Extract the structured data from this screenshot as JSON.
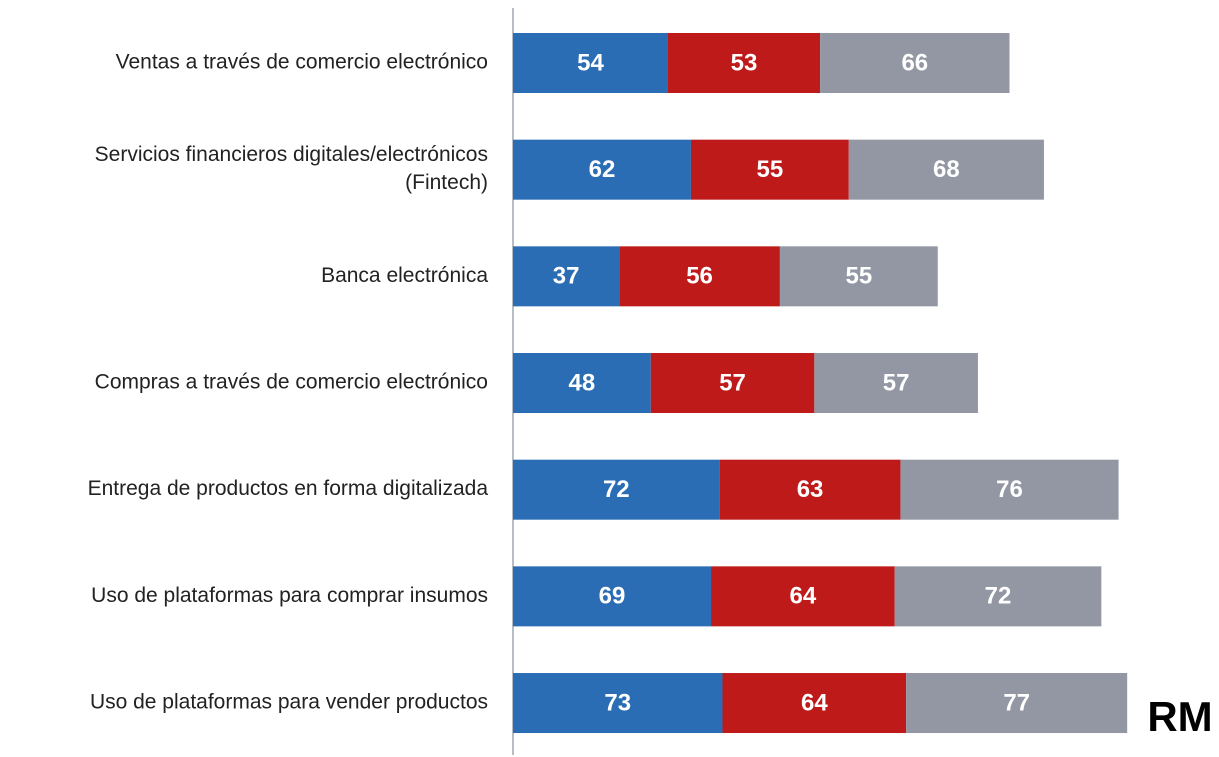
{
  "chart_data": {
    "type": "stacked-barh",
    "categories": [
      "Ventas a través de comercio electrónico",
      [
        "Servicios financieros digitales/electrónicos",
        "(Fintech)"
      ],
      "Banca electrónica",
      "Compras a través de comercio electrónico",
      "Entrega de productos en forma digitalizada",
      "Uso de plataformas para comprar insumos",
      "Uso de plataformas para vender productos"
    ],
    "series": [
      {
        "color": "#2a6db5",
        "values": [
          54,
          62,
          37,
          48,
          72,
          69,
          73
        ]
      },
      {
        "color": "#be1a1a",
        "values": [
          53,
          55,
          56,
          57,
          63,
          64,
          64
        ]
      },
      {
        "color": "#9297a3",
        "values": [
          66,
          68,
          55,
          57,
          76,
          72,
          77
        ]
      }
    ],
    "annotation": "RM"
  }
}
